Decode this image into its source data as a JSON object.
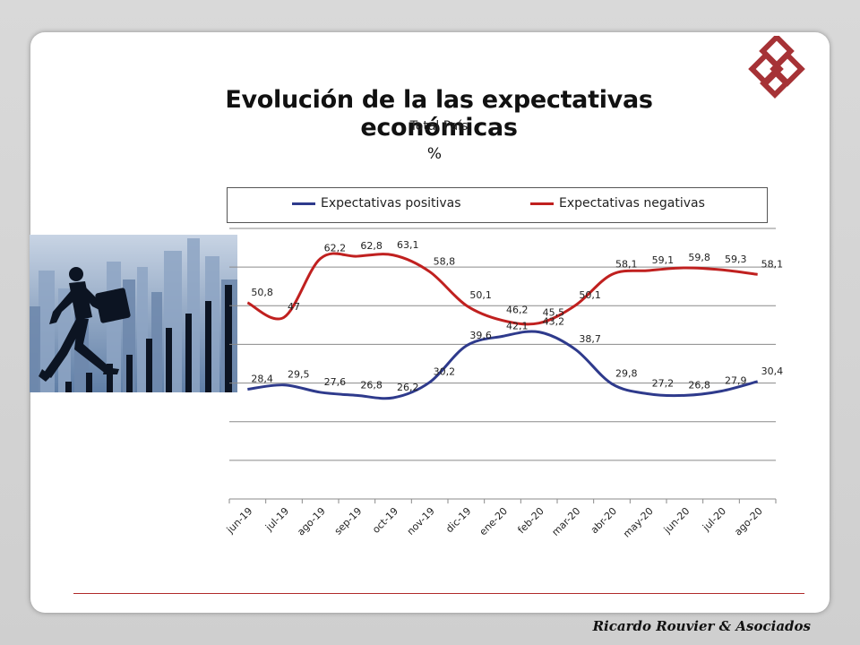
{
  "title": "Evolución de la las expectativas económicas",
  "subtitle": "Total País",
  "unit": "%",
  "footer": "Ricardo Rouvier & Asociados",
  "colors": {
    "positive": "#2e3a8c",
    "negative": "#c0201f",
    "logo": "#a63236"
  },
  "chart_data": {
    "type": "line",
    "categories": [
      "jun-19",
      "jul-19",
      "ago-19",
      "sep-19",
      "oct-19",
      "nov-19",
      "dic-19",
      "ene-20",
      "feb-20",
      "mar-20",
      "abr-20",
      "may-20",
      "jun-20",
      "jul-20",
      "ago-20"
    ],
    "series": [
      {
        "name": "Expectativas positivas",
        "values": [
          28.4,
          29.5,
          27.6,
          26.8,
          26.2,
          30.2,
          39.6,
          42.1,
          43.2,
          38.7,
          29.8,
          27.2,
          26.8,
          27.9,
          30.4
        ],
        "labels": [
          "28,4",
          "29,5",
          "27,6",
          "26,8",
          "26,2",
          "30,2",
          "39,6",
          "42,1",
          "43,2",
          "38,7",
          "29,8",
          "27,2",
          "26,8",
          "27,9",
          "30,4"
        ]
      },
      {
        "name": "Expectativas negativas",
        "values": [
          50.8,
          47,
          62.2,
          62.8,
          63.1,
          58.8,
          50.1,
          46.2,
          45.5,
          50.1,
          58.1,
          59.1,
          59.8,
          59.3,
          58.1
        ],
        "labels": [
          "50,8",
          "47",
          "62,2",
          "62,8",
          "63,1",
          "58,8",
          "50,1",
          "46,2",
          "45,5",
          "50,1",
          "58,1",
          "59,1",
          "59,8",
          "59,3",
          "58,1"
        ]
      }
    ],
    "ylim": [
      0,
      70
    ],
    "grid": true,
    "legend": "top"
  }
}
